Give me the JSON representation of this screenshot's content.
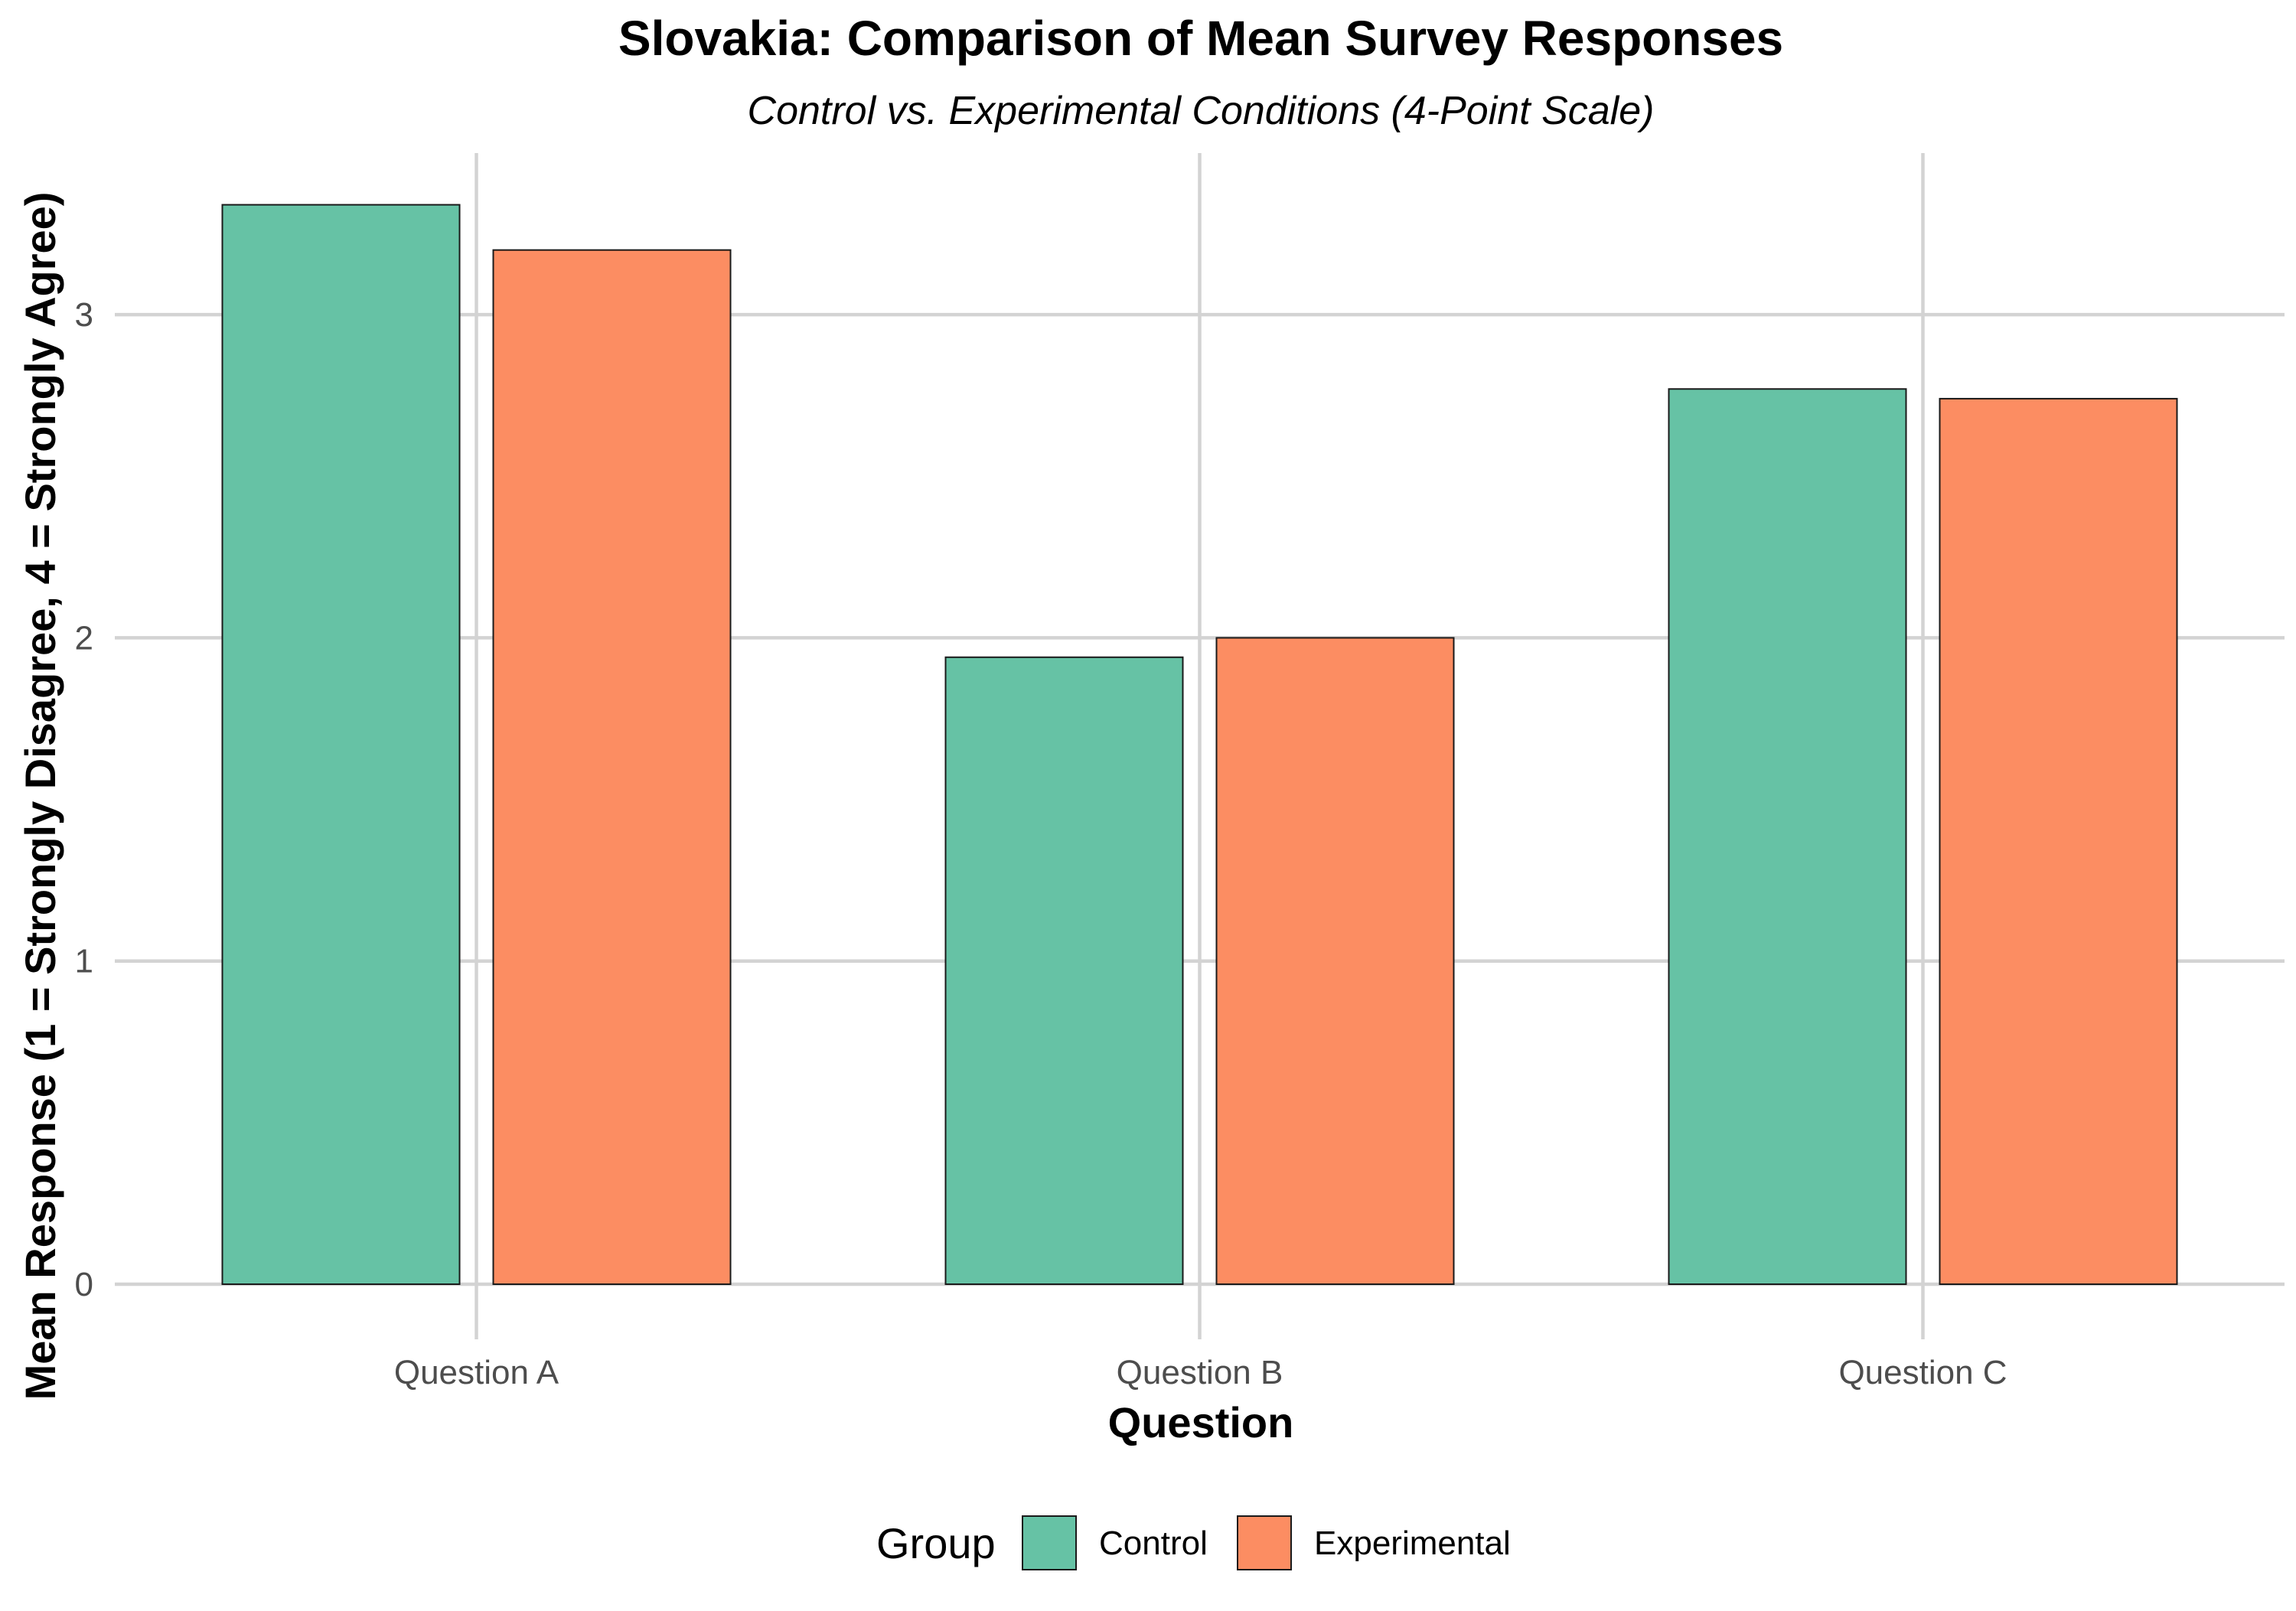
{
  "chart_data": {
    "type": "bar",
    "title": "Slovakia: Comparison of Mean Survey Responses",
    "subtitle": "Control vs. Experimental Conditions (4-Point Scale)",
    "xlabel": "Question",
    "ylabel": "Mean Response (1 = Strongly Disagree, 4 = Strongly Agree)",
    "categories": [
      "Question A",
      "Question B",
      "Question C"
    ],
    "series": [
      {
        "name": "Control",
        "color": "#66c2a5",
        "values": [
          3.34,
          1.94,
          2.77
        ]
      },
      {
        "name": "Experimental",
        "color": "#fc8d62",
        "values": [
          3.2,
          2.0,
          2.74
        ]
      }
    ],
    "ylim": [
      0,
      3.5
    ],
    "yticks": [
      "0",
      "1",
      "2",
      "3"
    ],
    "grid": true,
    "legend": {
      "title": "Group",
      "placement": "bottom"
    }
  }
}
